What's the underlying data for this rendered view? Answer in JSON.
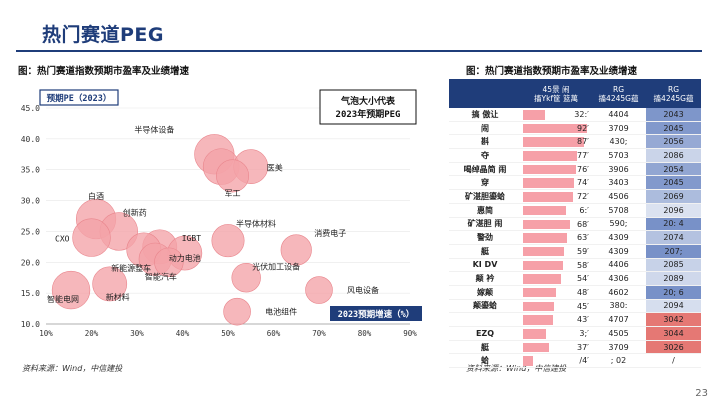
{
  "page": {
    "title": "热门赛道PEG",
    "number": "23"
  },
  "left": {
    "caption": "图：热门赛道指数预期市盈率及业绩增速",
    "source": "资料来源：Wind，中信建投",
    "legend_box": "气泡大小代表\n2023年预期PEG"
  },
  "right": {
    "caption": "图：热门赛道指数预期市盈率及业绩增速",
    "source": "资料来源：Wind，中信建投",
    "headers": [
      "",
      "45景  闹\n搐Ykf筐  篮萬",
      "RG\n搐4245G蕴",
      "RG\n搐4245G蕴"
    ],
    "rows": [
      {
        "name": "搞    傲让",
        "v": "32:′",
        "pe": "4404",
        "peg": "2043"
      },
      {
        "name": "闹",
        "v": "92′",
        "pe": "3709",
        "peg": "2045"
      },
      {
        "name": "斟",
        "v": "87′",
        "pe": "430;",
        "peg": "2056"
      },
      {
        "name": "夺",
        "v": "77′",
        "pe": "5703",
        "peg": "2086"
      },
      {
        "name": "喝绰晶简  闹",
        "v": "76′",
        "pe": "3906",
        "peg": "2054"
      },
      {
        "name": "穿",
        "v": "74′",
        "pe": "3403",
        "peg": "2045"
      },
      {
        "name": "矿湛胆鎏蛤",
        "v": "72′",
        "pe": "4506",
        "peg": "2069"
      },
      {
        "name": "惠简",
        "v": "6:′",
        "pe": "5708",
        "peg": "2096"
      },
      {
        "name": "矿湛胆  闹",
        "v": "68′",
        "pe": "590;",
        "peg": "20: 4"
      },
      {
        "name": "警劲",
        "v": "63′",
        "pe": "4309",
        "peg": "2074"
      },
      {
        "name": "艇",
        "v": "59′",
        "pe": "4309",
        "peg": "207;"
      },
      {
        "name": "KI DV",
        "v": "58′",
        "pe": "4406",
        "peg": "2085"
      },
      {
        "name": "颠    衿",
        "v": "54′",
        "pe": "4306",
        "peg": "2089"
      },
      {
        "name": "嫁颠",
        "v": "48′",
        "pe": "4602",
        "peg": "20; 6"
      },
      {
        "name": "颠鎏蛤",
        "v": "45′",
        "pe": "380:",
        "peg": "2094"
      },
      {
        "name": "",
        "v": "43′",
        "pe": "4707",
        "peg": "3042"
      },
      {
        "name": "EZQ",
        "v": "3;′",
        "pe": "4505",
        "peg": "3044"
      },
      {
        "name": "艇",
        "v": "37′",
        "pe": "3709",
        "peg": "3026"
      },
      {
        "name": "蛤",
        "v": "/4′",
        "pe": "; 02",
        "peg": "/"
      }
    ]
  },
  "chart_data": [
    {
      "type": "scatter",
      "title": "",
      "ylabel": "预期PE（2023）",
      "xlabel": "2023预期增速（%）",
      "xlim": [
        10,
        90
      ],
      "ylim": [
        10,
        45
      ],
      "xticks": [
        "10%",
        "20%",
        "30%",
        "40%",
        "50%",
        "60%",
        "70%",
        "80%",
        "90%"
      ],
      "yticks": [
        "10.0",
        "15.0",
        "20.0",
        "25.0",
        "30.0",
        "35.0",
        "40.0",
        "45.0"
      ],
      "points": [
        {
          "label": "半导体设备",
          "x": 47,
          "y": 37.5,
          "size": 1.2
        },
        {
          "label": "",
          "x": 48.5,
          "y": 35.5,
          "size": 1.0
        },
        {
          "label": "医美",
          "x": 55,
          "y": 35.5,
          "size": 0.9
        },
        {
          "label": "军工",
          "x": 51,
          "y": 34,
          "size": 0.8
        },
        {
          "label": "白酒",
          "x": 21,
          "y": 27,
          "size": 1.2
        },
        {
          "label": "创新药",
          "x": 26,
          "y": 25,
          "size": 1.1
        },
        {
          "label": "CXO",
          "x": 20,
          "y": 24,
          "size": 1.1
        },
        {
          "label": "IGBT",
          "x": 35,
          "y": 22.5,
          "size": 0.9
        },
        {
          "label": "",
          "x": 31.5,
          "y": 22,
          "size": 0.9
        },
        {
          "label": "动力电池",
          "x": 40.5,
          "y": 21.5,
          "size": 0.9
        },
        {
          "label": "半导体材料",
          "x": 50,
          "y": 23.5,
          "size": 0.8
        },
        {
          "label": "消费电子",
          "x": 65,
          "y": 22,
          "size": 0.7
        },
        {
          "label": "新能源整车",
          "x": 34,
          "y": 20.5,
          "size": 0.8
        },
        {
          "label": "智能汽车",
          "x": 37,
          "y": 20,
          "size": 0.6
        },
        {
          "label": "光伏加工设备",
          "x": 54,
          "y": 17.5,
          "size": 0.6
        },
        {
          "label": "智能电网",
          "x": 15.5,
          "y": 15.5,
          "size": 1.1
        },
        {
          "label": "新材料",
          "x": 24,
          "y": 16.5,
          "size": 0.9
        },
        {
          "label": "风电设备",
          "x": 70,
          "y": 15.5,
          "size": 0.5
        },
        {
          "label": "电池组件",
          "x": 52,
          "y": 12,
          "size": 0.5
        }
      ]
    },
    {
      "type": "bar",
      "series": [
        {
          "values": [
            32,
            92,
            87,
            77,
            76,
            74,
            72,
            62,
            68,
            63,
            59,
            58,
            54,
            48,
            45,
            43,
            33,
            37,
            14
          ]
        }
      ]
    }
  ],
  "colors": {
    "title": "#1f3d7a",
    "bubble": "#f4a3a8",
    "bubble_stroke": "#e9868d",
    "bar": "#f6a0a8",
    "header_bg": "#1f3d7a",
    "peg_low": "#3f63b0",
    "peg_high": "#e0605c"
  }
}
